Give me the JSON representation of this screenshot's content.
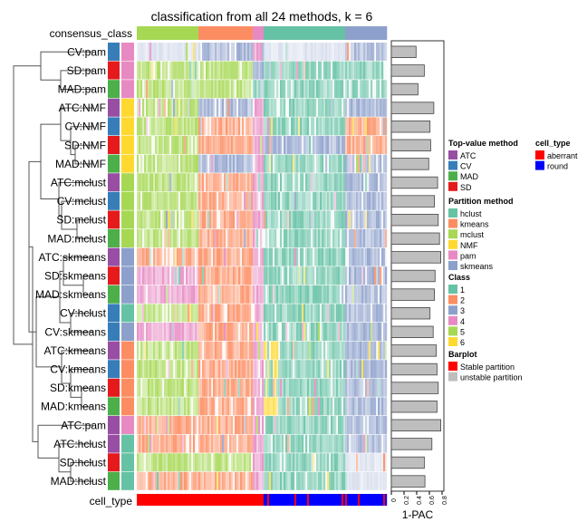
{
  "chart_data": {
    "type": "heatmap",
    "title": "classification from all 24 methods, k = 6",
    "consensus_label": "consensus_class",
    "consensus_regions": [
      5,
      2,
      4,
      1,
      3
    ],
    "cell_type_label": "cell_type",
    "cell_type_aberrant_until_sample": 69,
    "cell_type_aberrant_samples": [
      72,
      87,
      94,
      113,
      115,
      122,
      136
    ],
    "n_samples": 138,
    "barplot_xlabel": "1-PAC",
    "barplot_ticks": [
      "0",
      "0.2",
      "0.4",
      "0.6",
      "0.8"
    ],
    "barplot_xlim": [
      0,
      0.8
    ],
    "rows": [
      {
        "label": "CV:pam",
        "top": "CV",
        "part": "pam",
        "pac": 0.39,
        "cls": [
          0,
          3,
          4,
          0,
          3
        ]
      },
      {
        "label": "SD:pam",
        "top": "SD",
        "part": "pam",
        "pac": 0.52,
        "cls": [
          5,
          5,
          3,
          1,
          1
        ]
      },
      {
        "label": "MAD:pam",
        "top": "MAD",
        "part": "pam",
        "pac": 0.42,
        "cls": [
          5,
          5,
          1,
          1,
          1
        ]
      },
      {
        "label": "ATC:NMF",
        "top": "ATC",
        "part": "NMF",
        "pac": 0.67,
        "cls": [
          5,
          3,
          4,
          1,
          3
        ]
      },
      {
        "label": "CV:NMF",
        "top": "CV",
        "part": "NMF",
        "pac": 0.61,
        "cls": [
          5,
          2,
          4,
          1,
          2
        ]
      },
      {
        "label": "SD:NMF",
        "top": "SD",
        "part": "NMF",
        "pac": 0.62,
        "cls": [
          5,
          2,
          4,
          3,
          2
        ]
      },
      {
        "label": "MAD:NMF",
        "top": "MAD",
        "part": "NMF",
        "pac": 0.59,
        "cls": [
          5,
          3,
          4,
          1,
          3
        ]
      },
      {
        "label": "ATC:mclust",
        "top": "ATC",
        "part": "mclust",
        "pac": 0.73,
        "cls": [
          5,
          2,
          4,
          1,
          3
        ]
      },
      {
        "label": "CV:mclust",
        "top": "CV",
        "part": "mclust",
        "pac": 0.68,
        "cls": [
          5,
          2,
          4,
          1,
          3
        ]
      },
      {
        "label": "SD:mclust",
        "top": "SD",
        "part": "mclust",
        "pac": 0.74,
        "cls": [
          5,
          2,
          4,
          1,
          3
        ]
      },
      {
        "label": "MAD:mclust",
        "top": "MAD",
        "part": "mclust",
        "pac": 0.76,
        "cls": [
          5,
          2,
          4,
          1,
          3
        ]
      },
      {
        "label": "ATC:skmeans",
        "top": "ATC",
        "part": "skmeans",
        "pac": 0.78,
        "cls": [
          2,
          2,
          4,
          1,
          3
        ]
      },
      {
        "label": "SD:skmeans",
        "top": "SD",
        "part": "skmeans",
        "pac": 0.69,
        "cls": [
          4,
          2,
          4,
          1,
          3
        ]
      },
      {
        "label": "MAD:skmeans",
        "top": "MAD",
        "part": "skmeans",
        "pac": 0.68,
        "cls": [
          4,
          2,
          4,
          1,
          3
        ]
      },
      {
        "label": "CV:hclust",
        "top": "CV",
        "part": "hclust",
        "pac": 0.61,
        "cls": [
          5,
          2,
          4,
          1,
          3
        ]
      },
      {
        "label": "CV:skmeans",
        "top": "CV",
        "part": "skmeans",
        "pac": 0.66,
        "cls": [
          4,
          2,
          4,
          1,
          3
        ]
      },
      {
        "label": "ATC:kmeans",
        "top": "ATC",
        "part": "kmeans",
        "pac": 0.71,
        "cls": [
          5,
          2,
          4,
          1,
          3
        ]
      },
      {
        "label": "CV:kmeans",
        "top": "CV",
        "part": "kmeans",
        "pac": 0.72,
        "cls": [
          5,
          2,
          4,
          1,
          3
        ]
      },
      {
        "label": "SD:kmeans",
        "top": "SD",
        "part": "kmeans",
        "pac": 0.74,
        "cls": [
          5,
          2,
          4,
          1,
          3
        ]
      },
      {
        "label": "MAD:kmeans",
        "top": "MAD",
        "part": "kmeans",
        "pac": 0.72,
        "cls": [
          5,
          2,
          4,
          1,
          3
        ]
      },
      {
        "label": "ATC:pam",
        "top": "ATC",
        "part": "pam",
        "pac": 0.78,
        "cls": [
          2,
          2,
          4,
          1,
          3
        ]
      },
      {
        "label": "ATC:hclust",
        "top": "ATC",
        "part": "hclust",
        "pac": 0.64,
        "cls": [
          2,
          2,
          4,
          1,
          3
        ]
      },
      {
        "label": "SD:hclust",
        "top": "SD",
        "part": "hclust",
        "pac": 0.52,
        "cls": [
          5,
          5,
          4,
          1,
          0
        ]
      },
      {
        "label": "MAD:hclust",
        "top": "MAD",
        "part": "hclust",
        "pac": 0.53,
        "cls": [
          2,
          2,
          4,
          1,
          0
        ]
      }
    ]
  },
  "legend": {
    "top_title": "Top-value method",
    "top": [
      {
        "k": "ATC",
        "label": "ATC",
        "color": "#984EA3"
      },
      {
        "k": "CV",
        "label": "CV",
        "color": "#377EB8"
      },
      {
        "k": "MAD",
        "label": "MAD",
        "color": "#4DAF4A"
      },
      {
        "k": "SD",
        "label": "SD",
        "color": "#E41A1C"
      }
    ],
    "part_title": "Partition method",
    "part": [
      {
        "k": "hclust",
        "label": "hclust",
        "color": "#66C2A5"
      },
      {
        "k": "kmeans",
        "label": "kmeans",
        "color": "#FC8D62"
      },
      {
        "k": "mclust",
        "label": "mclust",
        "color": "#A6D854"
      },
      {
        "k": "NMF",
        "label": "NMF",
        "color": "#FFD92F"
      },
      {
        "k": "pam",
        "label": "pam",
        "color": "#E78AC3"
      },
      {
        "k": "skmeans",
        "label": "skmeans",
        "color": "#8DA0CB"
      }
    ],
    "class_title": "Class",
    "class": [
      {
        "label": "1",
        "color": "#66C2A5"
      },
      {
        "label": "2",
        "color": "#FC8D62"
      },
      {
        "label": "3",
        "color": "#8DA0CB"
      },
      {
        "label": "4",
        "color": "#E78AC3"
      },
      {
        "label": "5",
        "color": "#A6D854"
      },
      {
        "label": "6",
        "color": "#FFD92F"
      }
    ],
    "bar_title": "Barplot",
    "bar": [
      {
        "label": "Stable partition",
        "color": "#FF0000"
      },
      {
        "label": "unstable partition",
        "color": "#BEBEBE"
      }
    ],
    "cell_title": "cell_type",
    "cell": [
      {
        "label": "aberrant",
        "color": "#FF0000"
      },
      {
        "label": "round",
        "color": "#0000FF"
      }
    ]
  }
}
